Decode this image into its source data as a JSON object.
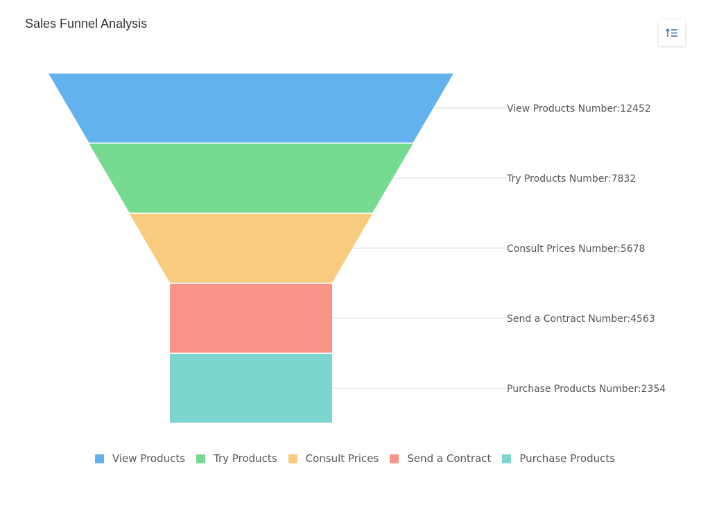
{
  "title": "Sales Funnel Analysis",
  "toolbar": {
    "sort_icon": "sort-ascending-icon"
  },
  "chart_data": {
    "type": "funnel",
    "title": "Sales Funnel Analysis",
    "categories": [
      "View Products",
      "Try Products",
      "Consult Prices",
      "Send a Contract",
      "Purchase Products"
    ],
    "values": [
      12452,
      7832,
      5678,
      4563,
      2354
    ],
    "labels": [
      "View Products Number:12452",
      "Try Products Number:7832",
      "Consult Prices Number:5678",
      "Send a Contract Number:4563",
      "Purchase Products Number:2354"
    ],
    "colors": [
      "#63b2ee",
      "#76da91",
      "#f8cb7f",
      "#f89588",
      "#7cd6cf"
    ],
    "legend_position": "bottom"
  },
  "legend": {
    "items": [
      {
        "label": "View Products",
        "color": "#63b2ee"
      },
      {
        "label": "Try Products",
        "color": "#76da91"
      },
      {
        "label": "Consult Prices",
        "color": "#f8cb7f"
      },
      {
        "label": "Send a Contract",
        "color": "#f89588"
      },
      {
        "label": "Purchase Products",
        "color": "#7cd6cf"
      }
    ]
  }
}
